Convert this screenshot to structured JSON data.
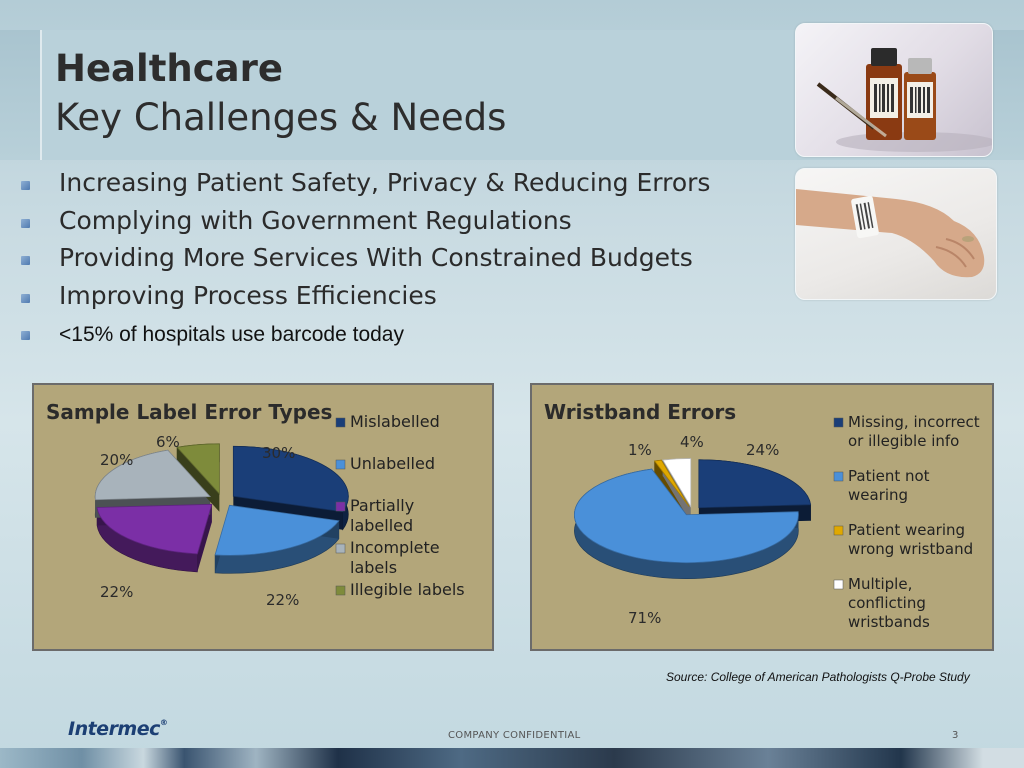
{
  "slide": {
    "title_line1": "Healthcare",
    "title_line2": "Key Challenges & Needs"
  },
  "bullets": [
    "Increasing Patient Safety, Privacy & Reducing Errors",
    "Complying with Government Regulations",
    "Providing More Services With Constrained Budgets",
    "Improving Process Efficiencies",
    "<15% of hospitals use barcode today"
  ],
  "chart_data": [
    {
      "type": "pie",
      "title": "Sample Label Error Types",
      "categories": [
        "Mislabelled",
        "Unlabelled",
        "Partially labelled",
        "Incomplete labels",
        "Illegible labels"
      ],
      "values": [
        30,
        22,
        22,
        20,
        6
      ],
      "value_labels": [
        "30%",
        "22%",
        "22%",
        "20%",
        "6%"
      ],
      "legend_lines": [
        [
          "Mislabelled"
        ],
        [
          "Unlabelled"
        ],
        [
          "Partially",
          "labelled"
        ],
        [
          "Incomplete",
          "labels"
        ],
        [
          "Illegible labels"
        ]
      ],
      "colors": [
        "#1a3e78",
        "#4a90d9",
        "#7b2fa6",
        "#a8b3bb",
        "#7e8b3b"
      ],
      "legend_placement": "right",
      "style": "3d exploded pie"
    },
    {
      "type": "pie",
      "title": "Wristband Errors",
      "categories": [
        "Missing, incorrect or illegible info",
        "Patient not wearing",
        "Patient wearing wrong wristband",
        "Multiple, conflicting wristbands"
      ],
      "values": [
        24,
        71,
        1,
        4
      ],
      "value_labels": [
        "24%",
        "71%",
        "1%",
        "4%"
      ],
      "legend_lines": [
        [
          "Missing, incorrect",
          "or illegible info"
        ],
        [
          "Patient not",
          "wearing"
        ],
        [
          "Patient wearing",
          "wrong wristband"
        ],
        [
          "Multiple,",
          "conflicting",
          "wristbands"
        ]
      ],
      "colors": [
        "#1a3e78",
        "#4a90d9",
        "#e0a800",
        "#ffffff"
      ],
      "legend_placement": "right",
      "style": "3d exploded pie"
    }
  ],
  "source": "Source: College of American Pathologists Q-Probe Study",
  "footer": {
    "logo": "Intermec",
    "logo_mark": "®",
    "confidential": "COMPANY CONFIDENTIAL",
    "page_number": "3"
  }
}
